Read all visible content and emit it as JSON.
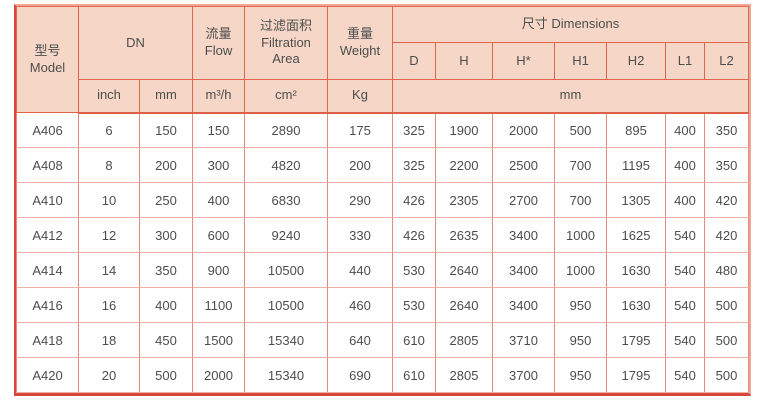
{
  "table": {
    "header": {
      "model": {
        "zh": "型号",
        "en": "Model"
      },
      "dn": {
        "label": "DN",
        "sub": [
          "inch",
          "mm"
        ]
      },
      "flow": {
        "zh": "流量",
        "en": "Flow",
        "unit": "m³/h"
      },
      "filtration_area": {
        "zh": "过滤面积",
        "en": "Filtration Area",
        "unit": "cm²"
      },
      "weight": {
        "zh": "重量",
        "en": "Weight",
        "unit": "Kg"
      },
      "dimensions": {
        "label": "尺寸 Dimensions",
        "sub": [
          "D",
          "H",
          "H*",
          "H1",
          "H2",
          "L1",
          "L2"
        ],
        "unit": "mm"
      }
    },
    "rows": [
      {
        "model": "A406",
        "values": [
          "6",
          "150",
          "150",
          "2890",
          "175",
          "325",
          "1900",
          "2000",
          "500",
          "895",
          "400",
          "350"
        ]
      },
      {
        "model": "A408",
        "values": [
          "8",
          "200",
          "300",
          "4820",
          "200",
          "325",
          "2200",
          "2500",
          "700",
          "1195",
          "400",
          "350"
        ]
      },
      {
        "model": "A410",
        "values": [
          "10",
          "250",
          "400",
          "6830",
          "290",
          "426",
          "2305",
          "2700",
          "700",
          "1305",
          "400",
          "420"
        ]
      },
      {
        "model": "A412",
        "values": [
          "12",
          "300",
          "600",
          "9240",
          "330",
          "426",
          "2635",
          "3400",
          "1000",
          "1625",
          "540",
          "420"
        ]
      },
      {
        "model": "A414",
        "values": [
          "14",
          "350",
          "900",
          "10500",
          "440",
          "530",
          "2640",
          "3400",
          "1000",
          "1630",
          "540",
          "480"
        ]
      },
      {
        "model": "A416",
        "values": [
          "16",
          "400",
          "1100",
          "10500",
          "460",
          "530",
          "2640",
          "3400",
          "950",
          "1630",
          "540",
          "500"
        ]
      },
      {
        "model": "A418",
        "values": [
          "18",
          "450",
          "1500",
          "15340",
          "640",
          "610",
          "2805",
          "3710",
          "950",
          "1795",
          "540",
          "500"
        ]
      },
      {
        "model": "A420",
        "values": [
          "20",
          "500",
          "2000",
          "15340",
          "690",
          "610",
          "2805",
          "3700",
          "950",
          "1795",
          "540",
          "500"
        ]
      }
    ]
  },
  "colors": {
    "header_bg": "#f6d7c7",
    "header_border": "#e0654c",
    "grid_vertical": "#e9897e",
    "grid_horizontal": "#f2afa4",
    "outer_dark": "#d8473b",
    "outer_light": "#f0a494",
    "text": "#4d4d4d"
  }
}
